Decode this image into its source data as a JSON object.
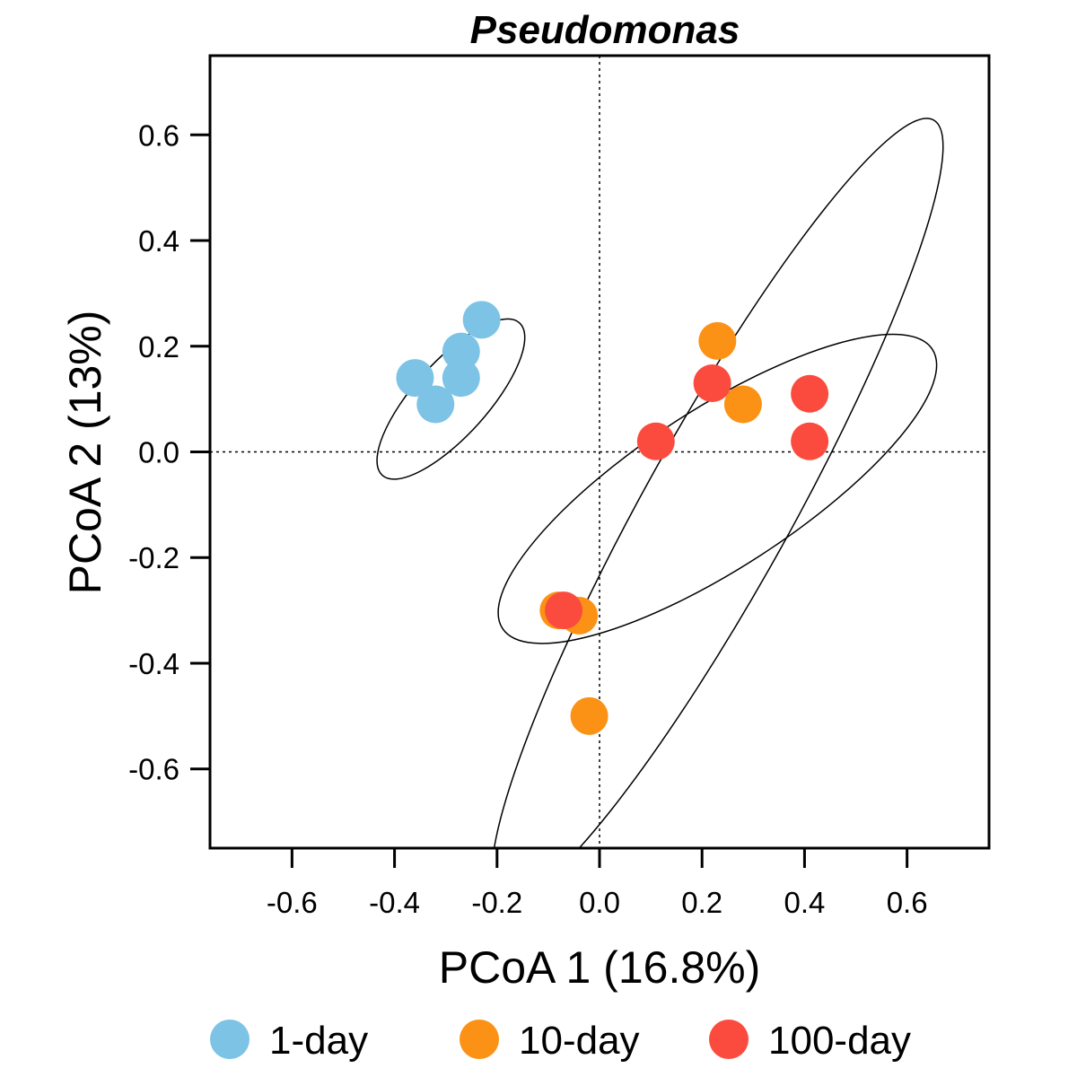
{
  "chart_data": {
    "type": "scatter",
    "title": "Pseudomonas",
    "xlabel": "PCoA 1 (16.8%)",
    "ylabel": "PCoA 2 (13%)",
    "xlim": [
      -0.76,
      0.76
    ],
    "ylim": [
      -0.75,
      0.75
    ],
    "x_ticks": [
      -0.6,
      -0.4,
      -0.2,
      0.0,
      0.2,
      0.4,
      0.6
    ],
    "y_ticks": [
      -0.6,
      -0.4,
      -0.2,
      0.0,
      0.2,
      0.4,
      0.6
    ],
    "x_tick_labels": [
      "-0.6",
      "-0.4",
      "-0.2",
      "0.0",
      "0.2",
      "0.4",
      "0.6"
    ],
    "y_tick_labels": [
      "-0.6",
      "-0.4",
      "-0.2",
      "0.0",
      "0.2",
      "0.4",
      "0.6"
    ],
    "reference_lines": {
      "x": 0,
      "y": 0,
      "style": "dotted"
    },
    "grid": false,
    "legend_position": "bottom",
    "series": [
      {
        "name": "1-day",
        "color": "#7DC3E6",
        "points": [
          {
            "x": -0.36,
            "y": 0.14
          },
          {
            "x": -0.32,
            "y": 0.09
          },
          {
            "x": -0.27,
            "y": 0.19
          },
          {
            "x": -0.27,
            "y": 0.14
          },
          {
            "x": -0.23,
            "y": 0.25
          }
        ],
        "ellipse": {
          "center": [
            -0.29,
            0.1
          ],
          "semi_major": 0.2,
          "semi_minor": 0.07,
          "angle_deg": 48
        }
      },
      {
        "name": "10-day",
        "color": "#FB9215",
        "points": [
          {
            "x": 0.23,
            "y": 0.21
          },
          {
            "x": 0.28,
            "y": 0.09
          },
          {
            "x": -0.08,
            "y": -0.3
          },
          {
            "x": -0.04,
            "y": -0.31
          },
          {
            "x": -0.02,
            "y": -0.5
          }
        ],
        "ellipse": {
          "center": [
            0.23,
            -0.11
          ],
          "semi_major": 0.87,
          "semi_minor": 0.14,
          "angle_deg": 61
        }
      },
      {
        "name": "100-day",
        "color": "#FB4B3F",
        "points": [
          {
            "x": 0.22,
            "y": 0.13
          },
          {
            "x": 0.41,
            "y": 0.11
          },
          {
            "x": 0.11,
            "y": 0.02
          },
          {
            "x": 0.41,
            "y": 0.02
          },
          {
            "x": -0.07,
            "y": -0.3
          }
        ],
        "ellipse": {
          "center": [
            0.23,
            -0.07
          ],
          "semi_major": 0.5,
          "semi_minor": 0.15,
          "angle_deg": 33
        }
      }
    ]
  }
}
